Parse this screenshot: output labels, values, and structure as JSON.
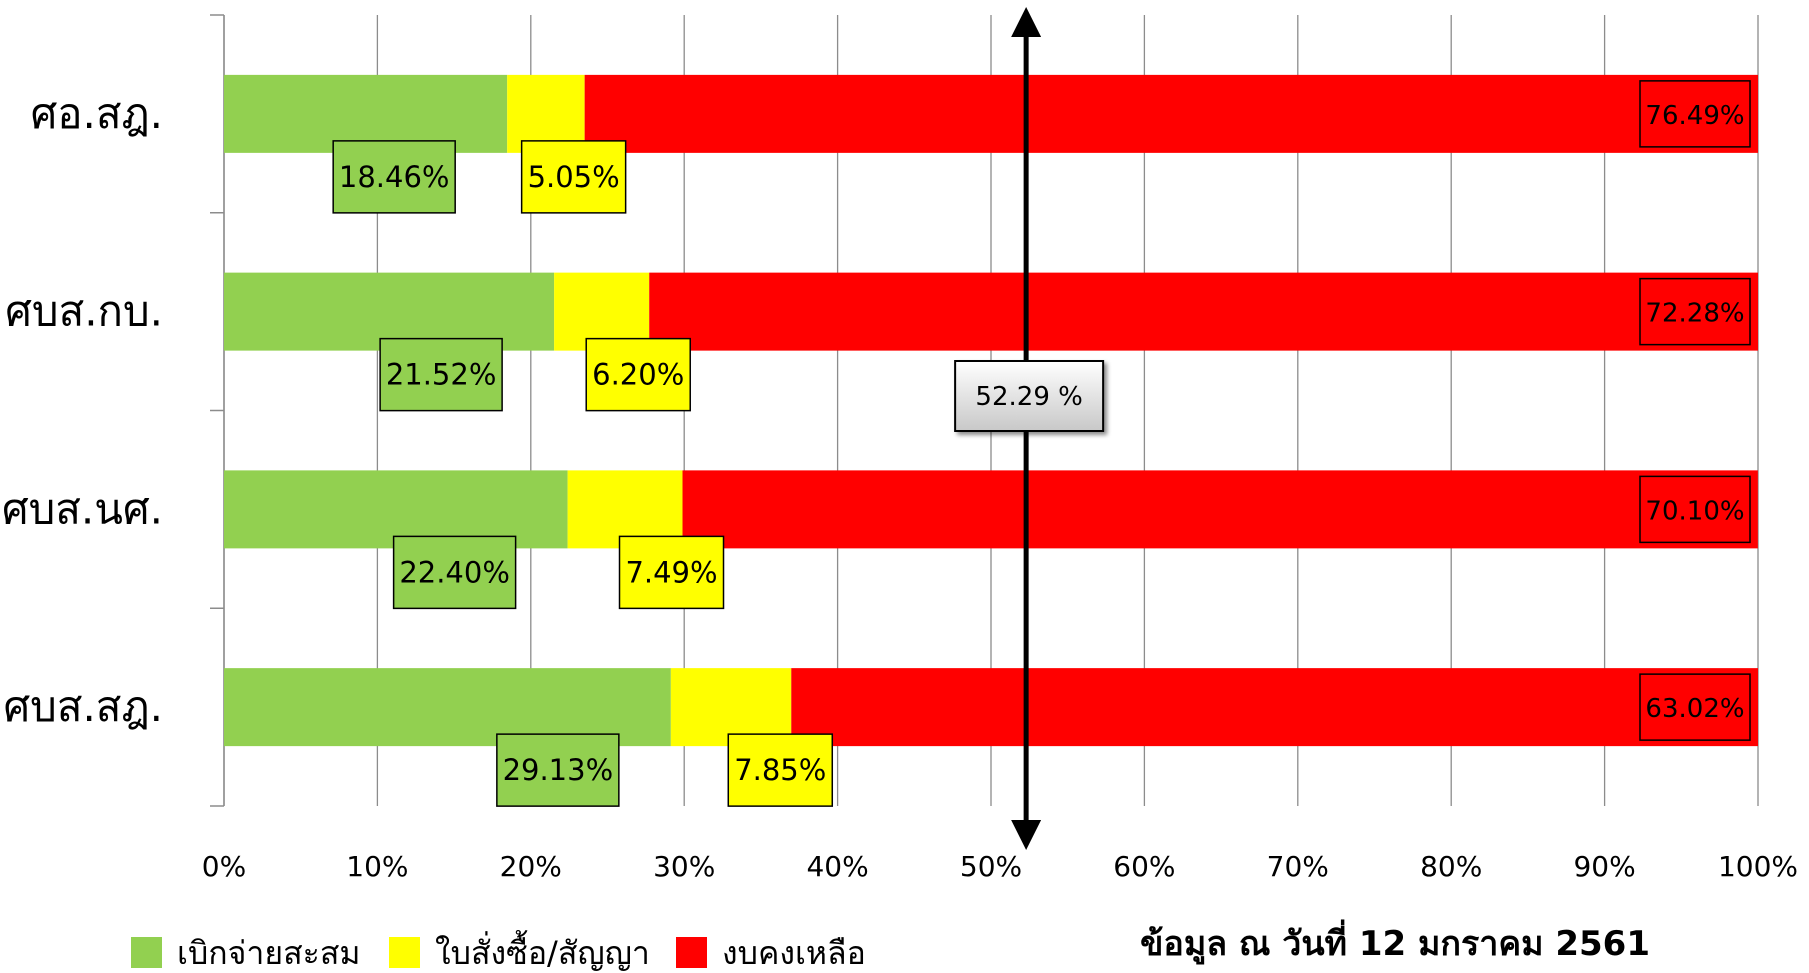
{
  "chart_data": {
    "type": "bar",
    "orientation": "horizontal",
    "stacked": true,
    "percent_stacked": true,
    "categories": [
      "ศอ.สฎ.",
      "ศบส.กบ.",
      "ศบส.นศ.",
      "ศบส.สฎ."
    ],
    "series": [
      {
        "name": "เบิกจ่ายสะสม",
        "color": "#92d050",
        "values": [
          18.46,
          21.52,
          22.4,
          29.13
        ],
        "labels": [
          "18.46%",
          "21.52%",
          "22.40%",
          "29.13%"
        ]
      },
      {
        "name": "ใบสั่งซื้อ/สัญญา",
        "color": "#ffff00",
        "values": [
          5.05,
          6.2,
          7.49,
          7.85
        ],
        "labels": [
          "5.05%",
          "6.20%",
          "7.49%",
          "7.85%"
        ]
      },
      {
        "name": "งบคงเหลือ",
        "color": "#ff0000",
        "values": [
          76.49,
          72.28,
          70.1,
          63.02
        ],
        "labels": [
          "76.49%",
          "72.28%",
          "70.10%",
          "63.02%"
        ]
      }
    ],
    "xlim": [
      0,
      100
    ],
    "x_ticks": [
      "0%",
      "10%",
      "20%",
      "30%",
      "40%",
      "50%",
      "60%",
      "70%",
      "80%",
      "90%",
      "100%"
    ],
    "grid": "vertical",
    "legend": "bottom-left",
    "reference_line": {
      "value": 52.29,
      "label": "52.29 %"
    },
    "note": "ข้อมูล ณ วันที่ 12 มกราคม 2561"
  }
}
